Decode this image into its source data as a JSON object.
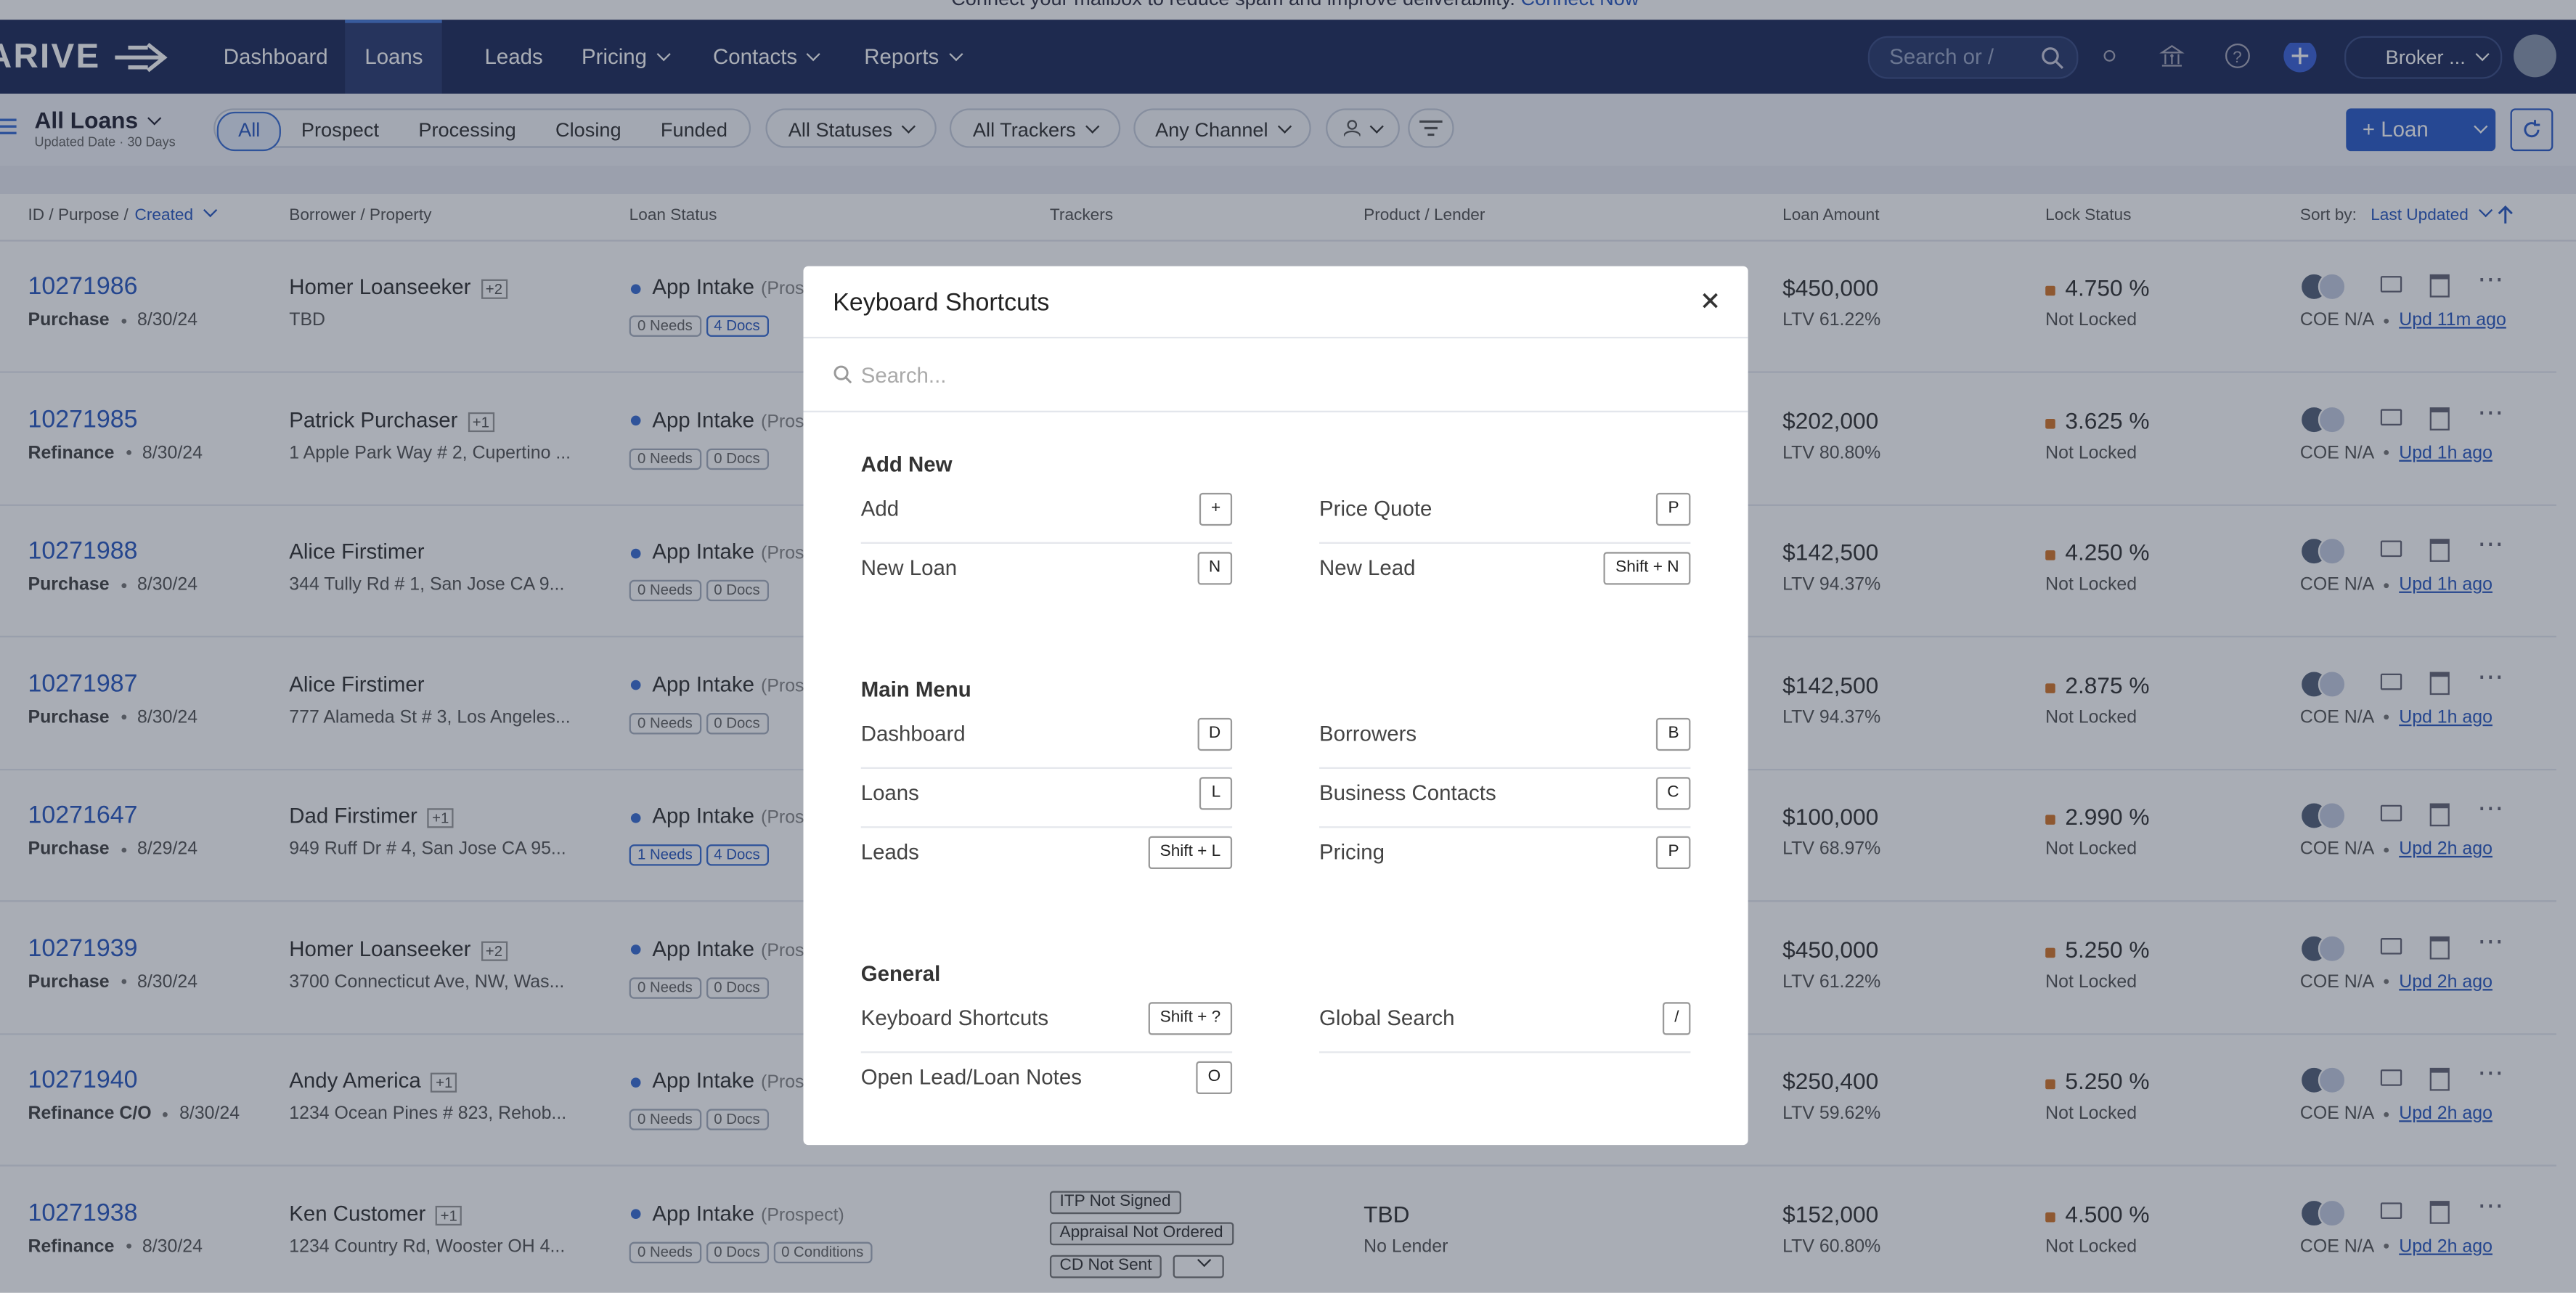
{
  "banner": {
    "text": "Connect your mailbox to reduce spam and improve deliverability.",
    "link": "Connect Now"
  },
  "nav": {
    "logo": "ARIVE",
    "items": [
      "Dashboard",
      "Loans",
      "Leads",
      "Pricing",
      "Contacts",
      "Reports"
    ],
    "dropdown_items": [
      3,
      4,
      5
    ],
    "active": 1,
    "search": "Search or /",
    "account": "Broker ..."
  },
  "toolbar": {
    "view": "All Loans",
    "view_sub": "Updated Date · 30 Days",
    "tabs": [
      "All",
      "Prospect",
      "Processing",
      "Closing",
      "Funded"
    ],
    "filters": [
      "All Statuses",
      "All Trackers",
      "Any Channel"
    ],
    "new_button": "Loan"
  },
  "table": {
    "id_header": "ID / Purpose /",
    "id_sort": "Created",
    "columns": [
      "Borrower / Property",
      "Loan Status",
      "Trackers",
      "Product / Lender",
      "Loan Amount",
      "Lock Status"
    ],
    "sort_label": "Sort by:",
    "sort_value": "Last Updated",
    "rows": [
      {
        "id": "10271986",
        "purpose": "Purchase",
        "date": "8/30/24",
        "borrower": "Homer Loanseeker",
        "extra": "+2",
        "property": "TBD",
        "status": "App Intake",
        "stage": "(Prospect)",
        "needs": "0 Needs",
        "docs": "4 Docs",
        "amount": "$450,000",
        "ltv": "LTV 61.22%",
        "rate": "4.750 %",
        "lock": "Not Locked",
        "coe": "COE N/A",
        "updated": "Upd 11m ago"
      },
      {
        "id": "10271985",
        "purpose": "Refinance",
        "date": "8/30/24",
        "borrower": "Patrick Purchaser",
        "extra": "+1",
        "property": "1 Apple Park Way # 2, Cupertino ...",
        "status": "App Intake",
        "stage": "(Prospect)",
        "needs": "0 Needs",
        "docs": "0 Docs",
        "amount": "$202,000",
        "ltv": "LTV 80.80%",
        "rate": "3.625 %",
        "lock": "Not Locked",
        "coe": "COE N/A",
        "updated": "Upd 1h ago"
      },
      {
        "id": "10271988",
        "purpose": "Purchase",
        "date": "8/30/24",
        "borrower": "Alice Firstimer",
        "property": "344 Tully Rd # 1, San Jose CA 9...",
        "status": "App Intake",
        "stage": "(Prospect)",
        "needs": "0 Needs",
        "docs": "0 Docs",
        "amount": "$142,500",
        "ltv": "LTV 94.37%",
        "rate": "4.250 %",
        "lock": "Not Locked",
        "coe": "COE N/A",
        "updated": "Upd 1h ago"
      },
      {
        "id": "10271987",
        "purpose": "Purchase",
        "date": "8/30/24",
        "borrower": "Alice Firstimer",
        "property": "777 Alameda St # 3, Los Angeles...",
        "status": "App Intake",
        "stage": "(Prospect)",
        "needs": "0 Needs",
        "docs": "0 Docs",
        "amount": "$142,500",
        "ltv": "LTV 94.37%",
        "rate": "2.875 %",
        "lock": "Not Locked",
        "coe": "COE N/A",
        "updated": "Upd 1h ago"
      },
      {
        "id": "10271647",
        "purpose": "Purchase",
        "date": "8/29/24",
        "borrower": "Dad Firstimer",
        "extra": "+1",
        "property": "949 Ruff Dr # 4, San Jose CA 95...",
        "status": "App Intake",
        "stage": "(Prospect)",
        "needs": "1 Needs",
        "docs": "4 Docs",
        "amount": "$100,000",
        "ltv": "LTV 68.97%",
        "rate": "2.990 %",
        "lock": "Not Locked",
        "coe": "COE N/A",
        "updated": "Upd 2h ago"
      },
      {
        "id": "10271939",
        "purpose": "Purchase",
        "date": "8/30/24",
        "borrower": "Homer Loanseeker",
        "extra": "+2",
        "property": "3700 Connecticut Ave, NW, Was...",
        "status": "App Intake",
        "stage": "(Prospect)",
        "needs": "0 Needs",
        "docs": "0 Docs",
        "amount": "$450,000",
        "ltv": "LTV 61.22%",
        "rate": "5.250 %",
        "lock": "Not Locked",
        "coe": "COE N/A",
        "updated": "Upd 2h ago"
      },
      {
        "id": "10271940",
        "purpose": "Refinance C/O",
        "date": "8/30/24",
        "borrower": "Andy America",
        "extra": "+1",
        "property": "1234 Ocean Pines # 823, Rehob...",
        "status": "App Intake",
        "stage": "(Prospect)",
        "needs": "0 Needs",
        "docs": "0 Docs",
        "amount": "$250,400",
        "ltv": "LTV 59.62%",
        "rate": "5.250 %",
        "lock": "Not Locked",
        "coe": "COE N/A",
        "updated": "Upd 2h ago"
      },
      {
        "id": "10271938",
        "purpose": "Refinance",
        "date": "8/30/24",
        "borrower": "Ken Customer",
        "extra": "+1",
        "property": "1234 Country Rd, Wooster OH 4...",
        "status": "App Intake",
        "stage": "(Prospect)",
        "needs": "0 Needs",
        "docs": "0 Docs",
        "conditions": "0 Conditions",
        "trackers": [
          "ITP Not Signed",
          "Appraisal Not Ordered",
          "CD Not Sent"
        ],
        "product": "TBD",
        "lender": "No Lender",
        "amount": "$152,000",
        "ltv": "LTV 60.80%",
        "rate": "4.500 %",
        "lock": "Not Locked",
        "coe": "COE N/A",
        "updated": "Upd 2h ago"
      }
    ]
  },
  "modal": {
    "title": "Keyboard Shortcuts",
    "search": "Search...",
    "sections": [
      {
        "title": "Add New",
        "items": [
          {
            "label": "Add",
            "key": "+"
          },
          {
            "label": "Price Quote",
            "key": "P"
          },
          {
            "label": "New Loan",
            "key": "N"
          },
          {
            "label": "New Lead",
            "key": "Shift + N"
          }
        ]
      },
      {
        "title": "Main Menu",
        "items": [
          {
            "label": "Dashboard",
            "key": "D"
          },
          {
            "label": "Borrowers",
            "key": "B"
          },
          {
            "label": "Loans",
            "key": "L"
          },
          {
            "label": "Business Contacts",
            "key": "C"
          },
          {
            "label": "Leads",
            "key": "Shift + L"
          },
          {
            "label": "Pricing",
            "key": "P"
          }
        ]
      },
      {
        "title": "General",
        "items": [
          {
            "label": "Keyboard Shortcuts",
            "key": "Shift + ?"
          },
          {
            "label": "Global Search",
            "key": "/"
          },
          {
            "label": "Open Lead/Loan Notes",
            "key": "O"
          }
        ]
      }
    ]
  }
}
